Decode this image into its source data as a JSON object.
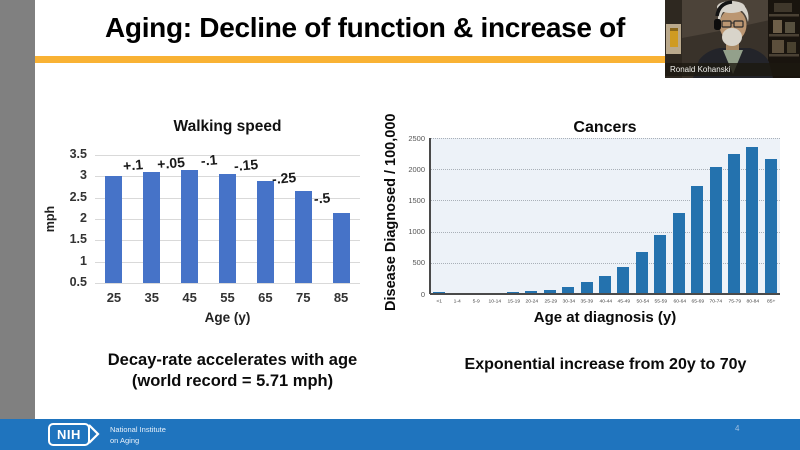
{
  "slide": {
    "title": "Aging: Decline of function & increase of",
    "page_number": "4"
  },
  "webcam": {
    "participant_name": "Ronald Kohanski"
  },
  "captions": {
    "left_line1": "Decay-rate accelerates with age",
    "left_line2": "(world record = 5.71 mph)",
    "right": "Exponential increase from 20y to 70y"
  },
  "footer": {
    "logo_text": "NIH",
    "org_line1": "National Institute",
    "org_line2": "on Aging"
  },
  "icons": {
    "nih_chevron": "nih-chevron-icon"
  },
  "colors": {
    "accent_underline": "#F9B234",
    "footer_blue": "#1F74BE",
    "walking_bar_blue": "#4673C8",
    "cancers_bar_blue": "#2472AE",
    "side_strip_gray": "#808080",
    "cancers_plot_bg": "#EDF2F8"
  },
  "chart_data": [
    {
      "type": "bar",
      "title": "Walking speed",
      "xlabel": "Age (y)",
      "ylabel": "mph",
      "categories": [
        "25",
        "35",
        "45",
        "55",
        "65",
        "75",
        "85"
      ],
      "values": [
        3.0,
        3.1,
        3.15,
        3.05,
        2.9,
        2.65,
        2.15
      ],
      "annotations": [
        "+.1",
        "+.05",
        "-.1",
        "-.15",
        "-.25",
        "-.5"
      ],
      "ylim": [
        0.5,
        3.5
      ],
      "yticks": [
        0.5,
        1,
        1.5,
        2,
        2.5,
        3,
        3.5
      ],
      "grid": true,
      "legend": "none"
    },
    {
      "type": "bar",
      "title": "Cancers",
      "xlabel": "Age at diagnosis (y)",
      "ylabel": "Disease Diagnosed / 100,000",
      "categories": [
        "<1",
        "1-4",
        "5-9",
        "10-14",
        "15-19",
        "20-24",
        "25-29",
        "30-34",
        "35-39",
        "40-44",
        "45-49",
        "50-54",
        "55-59",
        "60-64",
        "65-69",
        "70-74",
        "75-79",
        "80-84",
        "85+"
      ],
      "values": [
        30,
        22,
        14,
        16,
        28,
        45,
        70,
        120,
        190,
        290,
        440,
        680,
        950,
        1300,
        1730,
        2030,
        2250,
        2350,
        2170
      ],
      "ylim": [
        0,
        2500
      ],
      "yticks": [
        0,
        500,
        1000,
        1500,
        2000,
        2500
      ],
      "grid": true,
      "legend": "none"
    }
  ]
}
